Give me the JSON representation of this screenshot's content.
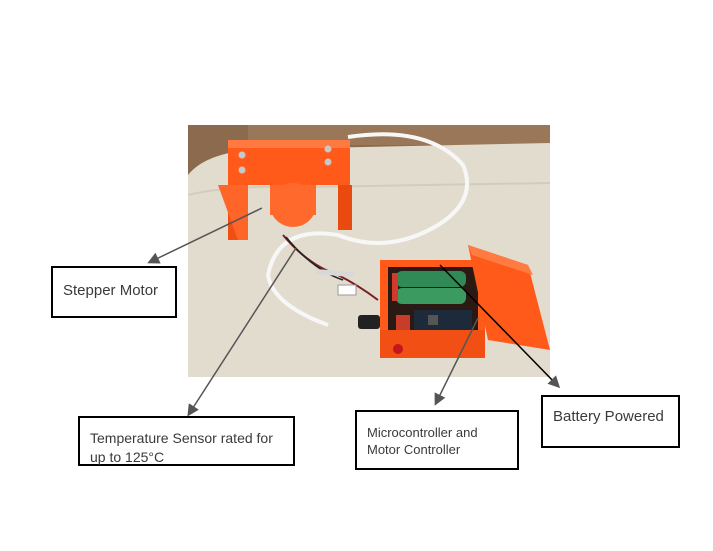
{
  "labels": {
    "stepper_motor": "Stepper Motor",
    "temperature_sensor": "Temperature Sensor rated for up to 125°C",
    "microcontroller": "Microcontroller and Motor Controller",
    "battery": "Battery Powered"
  },
  "colors": {
    "enclosure_orange": "#ff5a1a",
    "sofa_fabric": "#e4ded3",
    "wood_floor": "#8c6a4d",
    "battery_green": "#2f8a55",
    "arrow": "#555555"
  }
}
